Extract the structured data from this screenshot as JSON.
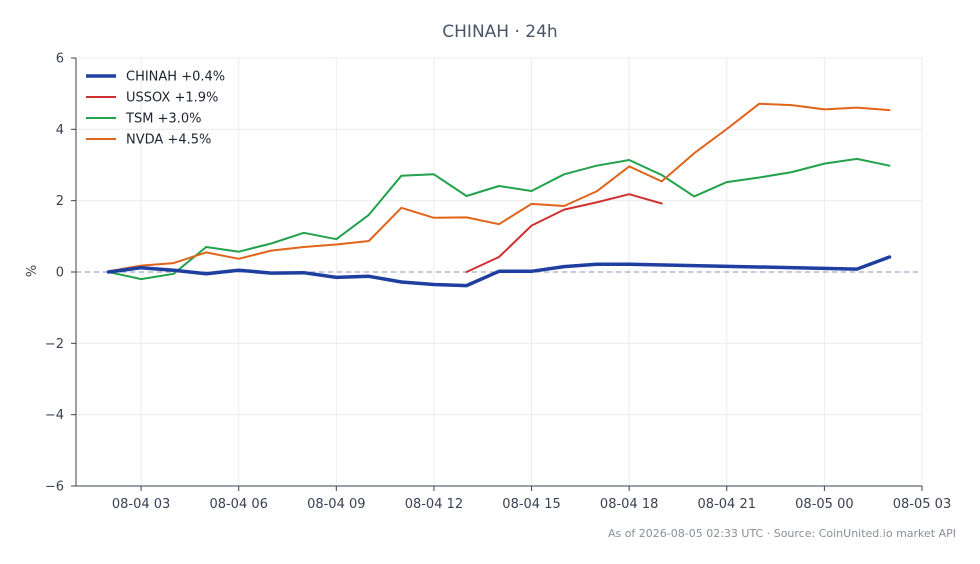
{
  "chart_data": {
    "type": "line",
    "title": "CHINAH · 24h",
    "xlabel": "",
    "ylabel": "%",
    "x_tick_labels": [
      "08-04 03",
      "08-04 06",
      "08-04 09",
      "08-04 12",
      "08-04 15",
      "08-04 18",
      "08-04 21",
      "08-05 00",
      "08-05 03"
    ],
    "y_tick_labels": [
      "6",
      "4",
      "2",
      "0",
      "−2",
      "−4",
      "−6"
    ],
    "ylim": [
      -6,
      6
    ],
    "xlim": [
      "2026-08-04 01:00",
      "2026-08-05 03:00"
    ],
    "grid": true,
    "zero_line": true,
    "legend_position": "top-left",
    "series": [
      {
        "name": "CHINAH +0.4%",
        "color": "#1f3fa0",
        "emphasis": true,
        "x": [
          "2026-08-04 02:00",
          "2026-08-04 03:00",
          "2026-08-04 04:00",
          "2026-08-04 05:00",
          "2026-08-04 06:00",
          "2026-08-04 07:00",
          "2026-08-04 08:00",
          "2026-08-04 09:00",
          "2026-08-04 10:00",
          "2026-08-04 11:00",
          "2026-08-04 12:00",
          "2026-08-04 13:00",
          "2026-08-04 14:00",
          "2026-08-04 15:00",
          "2026-08-04 16:00",
          "2026-08-04 17:00",
          "2026-08-04 18:00",
          "2026-08-05 01:00",
          "2026-08-05 02:00"
        ],
        "values": [
          0.0,
          0.12,
          0.05,
          -0.05,
          0.05,
          -0.03,
          -0.02,
          -0.15,
          -0.12,
          -0.28,
          -0.35,
          -0.38,
          0.02,
          0.02,
          0.15,
          0.22,
          0.22,
          0.08,
          0.42
        ]
      },
      {
        "name": "USSOX +1.9%",
        "color": "#d03030",
        "emphasis": false,
        "x": [
          "2026-08-04 13:00",
          "2026-08-04 14:00",
          "2026-08-04 15:00",
          "2026-08-04 16:00",
          "2026-08-04 17:00",
          "2026-08-04 18:00",
          "2026-08-04 19:00"
        ],
        "values": [
          0.0,
          0.42,
          1.3,
          1.75,
          1.95,
          2.18,
          1.92
        ]
      },
      {
        "name": "TSM +3.0%",
        "color": "#22a24a",
        "emphasis": false,
        "x": [
          "2026-08-04 02:00",
          "2026-08-04 03:00",
          "2026-08-04 04:00",
          "2026-08-04 05:00",
          "2026-08-04 06:00",
          "2026-08-04 07:00",
          "2026-08-04 08:00",
          "2026-08-04 09:00",
          "2026-08-04 10:00",
          "2026-08-04 11:00",
          "2026-08-04 12:00",
          "2026-08-04 13:00",
          "2026-08-04 14:00",
          "2026-08-04 15:00",
          "2026-08-04 16:00",
          "2026-08-04 17:00",
          "2026-08-04 18:00",
          "2026-08-04 19:00",
          "2026-08-04 20:00",
          "2026-08-04 21:00",
          "2026-08-04 22:00",
          "2026-08-04 23:00",
          "2026-08-05 00:00",
          "2026-08-05 01:00",
          "2026-08-05 02:00"
        ],
        "values": [
          0.0,
          -0.2,
          -0.05,
          0.7,
          0.57,
          0.8,
          1.1,
          0.92,
          1.6,
          2.7,
          2.74,
          2.13,
          2.41,
          2.27,
          2.74,
          2.98,
          3.14,
          2.72,
          2.12,
          2.52,
          2.65,
          2.8,
          3.04,
          3.17,
          2.98
        ]
      },
      {
        "name": "NVDA +4.5%",
        "color": "#e0641a",
        "emphasis": false,
        "x": [
          "2026-08-04 02:00",
          "2026-08-04 03:00",
          "2026-08-04 04:00",
          "2026-08-04 05:00",
          "2026-08-04 06:00",
          "2026-08-04 07:00",
          "2026-08-04 08:00",
          "2026-08-04 09:00",
          "2026-08-04 10:00",
          "2026-08-04 11:00",
          "2026-08-04 12:00",
          "2026-08-04 13:00",
          "2026-08-04 14:00",
          "2026-08-04 15:00",
          "2026-08-04 16:00",
          "2026-08-04 17:00",
          "2026-08-04 18:00",
          "2026-08-04 19:00",
          "2026-08-04 20:00",
          "2026-08-04 21:00",
          "2026-08-04 22:00",
          "2026-08-04 23:00",
          "2026-08-05 00:00",
          "2026-08-05 01:00",
          "2026-08-05 02:00"
        ],
        "values": [
          0.02,
          0.18,
          0.25,
          0.55,
          0.37,
          0.6,
          0.7,
          0.77,
          0.87,
          1.8,
          1.52,
          1.53,
          1.34,
          1.91,
          1.85,
          2.26,
          2.96,
          2.54,
          3.33,
          4.01,
          4.72,
          4.68,
          4.56,
          4.61,
          4.54
        ]
      }
    ]
  },
  "footer": "As of 2026-08-05 02:33 UTC · Source: CoinUnited.io market API"
}
